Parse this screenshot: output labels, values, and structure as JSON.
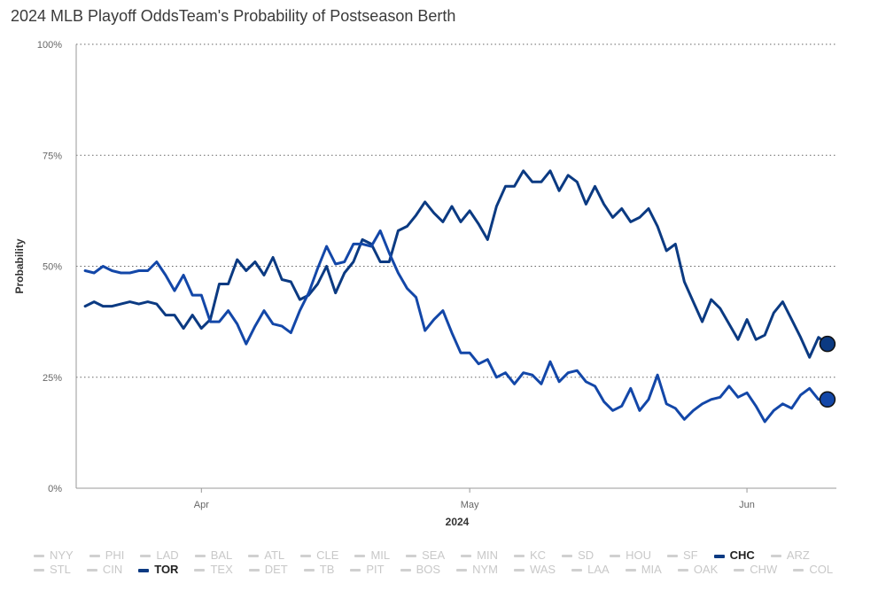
{
  "title": "2024 MLB Playoff OddsTeam's Probability of Postseason Berth",
  "legend": [
    {
      "label": "NYY",
      "active": false
    },
    {
      "label": "PHI",
      "active": false
    },
    {
      "label": "LAD",
      "active": false
    },
    {
      "label": "BAL",
      "active": false
    },
    {
      "label": "ATL",
      "active": false
    },
    {
      "label": "CLE",
      "active": false
    },
    {
      "label": "MIL",
      "active": false
    },
    {
      "label": "SEA",
      "active": false
    },
    {
      "label": "MIN",
      "active": false
    },
    {
      "label": "KC",
      "active": false
    },
    {
      "label": "SD",
      "active": false
    },
    {
      "label": "HOU",
      "active": false
    },
    {
      "label": "SF",
      "active": false
    },
    {
      "label": "CHC",
      "active": true
    },
    {
      "label": "ARZ",
      "active": false
    },
    {
      "label": "STL",
      "active": false
    },
    {
      "label": "CIN",
      "active": false
    },
    {
      "label": "TOR",
      "active": true
    },
    {
      "label": "TEX",
      "active": false
    },
    {
      "label": "DET",
      "active": false
    },
    {
      "label": "TB",
      "active": false
    },
    {
      "label": "PIT",
      "active": false
    },
    {
      "label": "BOS",
      "active": false
    },
    {
      "label": "NYM",
      "active": false
    },
    {
      "label": "WAS",
      "active": false
    },
    {
      "label": "LAA",
      "active": false
    },
    {
      "label": "MIA",
      "active": false
    },
    {
      "label": "OAK",
      "active": false
    },
    {
      "label": "CHW",
      "active": false
    },
    {
      "label": "COL",
      "active": false
    }
  ],
  "colors": {
    "CHC": "#0b3a82",
    "TOR": "#1347a8",
    "grid": "#666666",
    "axis": "#999999"
  },
  "chart_data": {
    "type": "line",
    "title": "2024 MLB Playoff OddsTeam's Probability of Postseason Berth",
    "xlabel": "2024",
    "ylabel": "Probability",
    "x_tick_labels": [
      "Apr",
      "May",
      "Jun"
    ],
    "x_tick_dates": [
      "2024-04-01",
      "2024-05-01",
      "2024-06-01"
    ],
    "y_ticks": [
      0,
      25,
      50,
      75,
      100
    ],
    "y_tick_labels": [
      "0%",
      "25%",
      "50%",
      "75%",
      "100%"
    ],
    "ylim": [
      0,
      100
    ],
    "x_range": [
      "2024-03-18",
      "2024-06-11"
    ],
    "grid": "horizontal dotted",
    "legend_position": "bottom",
    "x": [
      "2024-03-19",
      "2024-03-20",
      "2024-03-21",
      "2024-03-22",
      "2024-03-23",
      "2024-03-24",
      "2024-03-25",
      "2024-03-26",
      "2024-03-27",
      "2024-03-28",
      "2024-03-29",
      "2024-03-30",
      "2024-03-31",
      "2024-04-01",
      "2024-04-02",
      "2024-04-03",
      "2024-04-04",
      "2024-04-05",
      "2024-04-06",
      "2024-04-07",
      "2024-04-08",
      "2024-04-09",
      "2024-04-10",
      "2024-04-11",
      "2024-04-12",
      "2024-04-13",
      "2024-04-14",
      "2024-04-15",
      "2024-04-16",
      "2024-04-17",
      "2024-04-18",
      "2024-04-19",
      "2024-04-20",
      "2024-04-21",
      "2024-04-22",
      "2024-04-23",
      "2024-04-24",
      "2024-04-25",
      "2024-04-26",
      "2024-04-27",
      "2024-04-28",
      "2024-04-29",
      "2024-04-30",
      "2024-05-01",
      "2024-05-02",
      "2024-05-03",
      "2024-05-04",
      "2024-05-05",
      "2024-05-06",
      "2024-05-07",
      "2024-05-08",
      "2024-05-09",
      "2024-05-10",
      "2024-05-11",
      "2024-05-12",
      "2024-05-13",
      "2024-05-14",
      "2024-05-15",
      "2024-05-16",
      "2024-05-17",
      "2024-05-18",
      "2024-05-19",
      "2024-05-20",
      "2024-05-21",
      "2024-05-22",
      "2024-05-23",
      "2024-05-24",
      "2024-05-25",
      "2024-05-26",
      "2024-05-27",
      "2024-05-28",
      "2024-05-29",
      "2024-05-30",
      "2024-05-31",
      "2024-06-01",
      "2024-06-02",
      "2024-06-03",
      "2024-06-04",
      "2024-06-05",
      "2024-06-06",
      "2024-06-07",
      "2024-06-08",
      "2024-06-09",
      "2024-06-10"
    ],
    "series": [
      {
        "name": "CHC",
        "values": [
          41,
          42,
          41,
          41,
          41.5,
          42,
          41.5,
          42,
          41.5,
          39,
          39,
          36,
          39,
          36,
          38,
          46,
          46,
          51.5,
          49,
          51,
          48,
          52,
          47,
          46.5,
          42.5,
          43.5,
          46,
          50,
          44,
          48.5,
          51,
          56,
          55,
          51,
          51,
          58,
          59,
          61.5,
          64.5,
          62,
          60,
          63.5,
          60,
          62.5,
          59.5,
          56,
          63.5,
          68,
          68,
          71.5,
          69,
          69,
          71.5,
          67,
          70.5,
          69,
          64,
          68,
          64,
          61,
          63,
          60,
          61,
          63,
          59,
          53.5,
          55,
          46.5,
          42,
          37.5,
          42.5,
          40.5,
          37,
          33.5,
          38,
          33.5,
          34.5,
          39.5,
          42,
          38,
          34,
          29.5,
          34,
          32.5
        ]
      },
      {
        "name": "TOR",
        "values": [
          49,
          48.5,
          50,
          49,
          48.5,
          48.5,
          49,
          49,
          51,
          48,
          44.5,
          48,
          43.5,
          43.5,
          37.5,
          37.5,
          40,
          37,
          32.5,
          36.5,
          40,
          37,
          36.5,
          35,
          40,
          44,
          49.5,
          54.5,
          50.5,
          51,
          55,
          55,
          54.5,
          58,
          53,
          48.5,
          45,
          43,
          35.5,
          38,
          40,
          35,
          30.5,
          30.5,
          28,
          29,
          25,
          26,
          23.5,
          26,
          25.5,
          23.5,
          28.5,
          24,
          26,
          26.5,
          24,
          23,
          19.5,
          17.5,
          18.5,
          22.5,
          17.5,
          20,
          25.5,
          19,
          18,
          15.5,
          17.5,
          19,
          20,
          20.5,
          23,
          20.5,
          21.5,
          18.5,
          15,
          17.5,
          19,
          18,
          21,
          22.5,
          20,
          20
        ]
      }
    ]
  }
}
